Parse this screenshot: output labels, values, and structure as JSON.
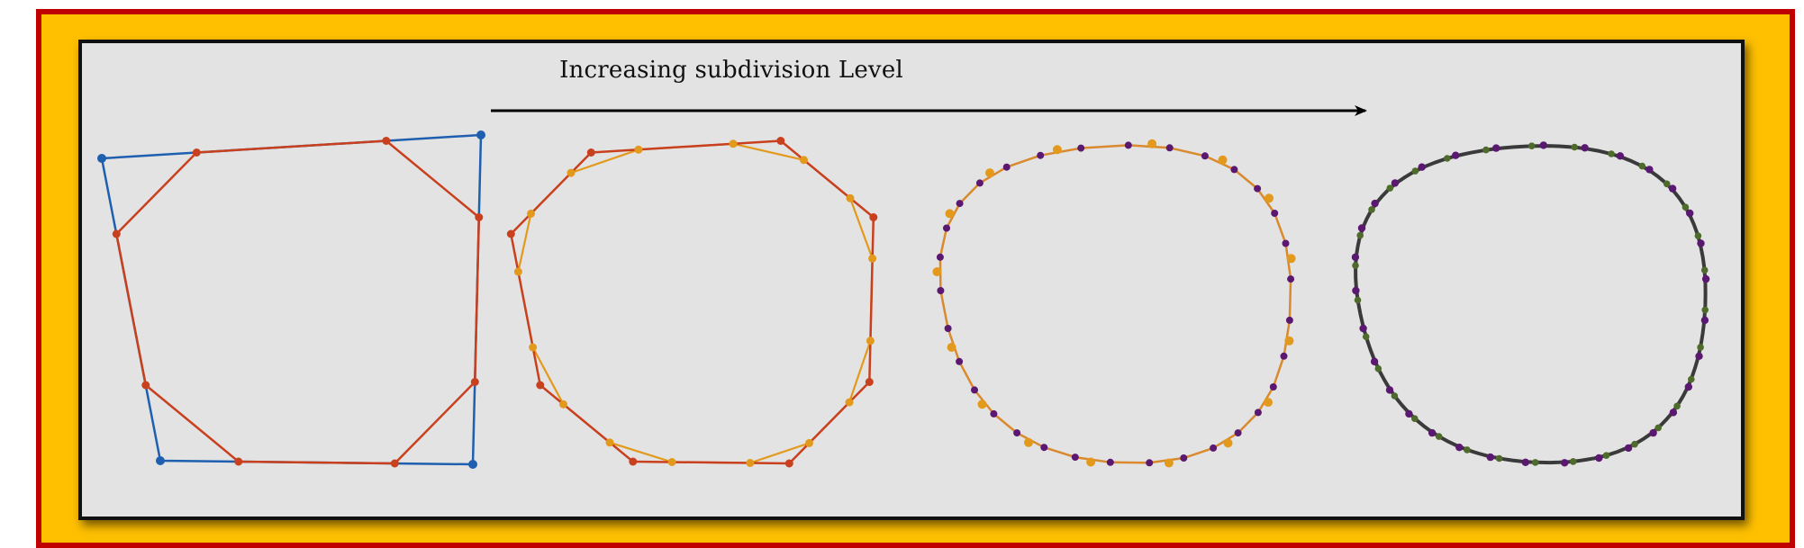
{
  "caption": "Increasing subdivision Level",
  "colors": {
    "frame_outer": "#FFC000",
    "frame_border": "#C00000",
    "panel_background": "#E3E3E3",
    "panel_border": "#111111",
    "control_polygon": "#1F5FB0",
    "level_1": "#C8401E",
    "level_2": "#E39A1C",
    "level_2_curve": "#D98A2E",
    "level_3_points": "#5B1870",
    "level_4_points": "#4E6B2C",
    "level_4_curve": "#3A3A3A",
    "arrow": "#000000"
  },
  "stages": [
    {
      "name": "control-polygon",
      "color": "control_polygon"
    },
    {
      "name": "subdivision-level-1",
      "color": "level_1"
    },
    {
      "name": "subdivision-level-2",
      "color": "level_2"
    },
    {
      "name": "subdivision-level-3",
      "color": "level_4_points"
    }
  ]
}
